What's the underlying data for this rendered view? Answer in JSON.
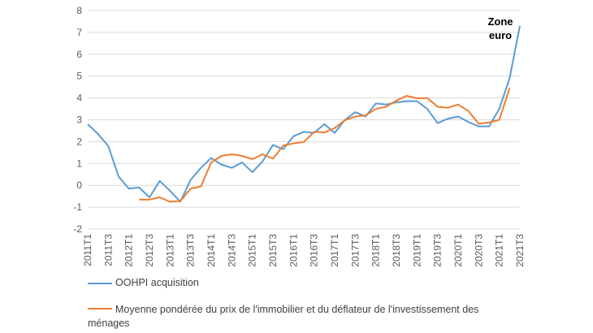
{
  "chart_data": {
    "type": "line",
    "title": "",
    "xlabel": "",
    "ylabel": "",
    "annotation": "Zone euro",
    "ylim": [
      -2,
      8
    ],
    "yticks": [
      -2,
      -1,
      0,
      1,
      2,
      3,
      4,
      5,
      6,
      7,
      8
    ],
    "grid": "horizontal",
    "legend": "bottom",
    "x": [
      "2011T1",
      "2011T2",
      "2011T3",
      "2011T4",
      "2012T1",
      "2012T2",
      "2012T3",
      "2012T4",
      "2013T1",
      "2013T2",
      "2013T3",
      "2013T4",
      "2014T1",
      "2014T2",
      "2014T3",
      "2014T4",
      "2015T1",
      "2015T2",
      "2015T3",
      "2015T4",
      "2016T1",
      "2016T2",
      "2016T3",
      "2016T4",
      "2017T1",
      "2017T2",
      "2017T3",
      "2017T4",
      "2018T1",
      "2018T2",
      "2018T3",
      "2018T4",
      "2019T1",
      "2019T2",
      "2019T3",
      "2019T4",
      "2020T1",
      "2020T2",
      "2020T3",
      "2020T4",
      "2021T1",
      "2021T2",
      "2021T3"
    ],
    "x_tick_labels": [
      "2011T1",
      "2011T3",
      "2012T1",
      "2012T3",
      "2013T1",
      "2013T3",
      "2014T1",
      "2014T3",
      "2015T1",
      "2015T3",
      "2016T1",
      "2016T3",
      "2017T1",
      "2017T3",
      "2018T1",
      "2018T3",
      "2019T1",
      "2019T3",
      "2020T1",
      "2020T3",
      "2021T1",
      "2021T3"
    ],
    "series": [
      {
        "name": "OOHPI acquisition",
        "color": "#5b9bd5",
        "values": [
          2.8,
          2.35,
          1.8,
          0.4,
          -0.15,
          -0.1,
          -0.55,
          0.2,
          -0.25,
          -0.75,
          0.25,
          0.8,
          1.25,
          0.95,
          0.8,
          1.05,
          0.6,
          1.1,
          1.85,
          1.65,
          2.25,
          2.45,
          2.4,
          2.8,
          2.4,
          3.0,
          3.35,
          3.15,
          3.75,
          3.7,
          3.8,
          3.85,
          3.85,
          3.5,
          2.85,
          3.05,
          3.15,
          2.9,
          2.7,
          2.7,
          3.5,
          4.9,
          7.3
        ]
      },
      {
        "name": "Moyenne pondérée du prix de l'immobilier et du déflateur de l'investissement des ménages",
        "color": "#ed7d31",
        "values": [
          null,
          null,
          null,
          null,
          null,
          -0.65,
          -0.65,
          -0.55,
          -0.75,
          -0.72,
          -0.15,
          -0.05,
          1.05,
          1.35,
          1.42,
          1.35,
          1.2,
          1.42,
          1.22,
          1.82,
          1.92,
          1.98,
          2.45,
          2.42,
          2.62,
          2.98,
          3.15,
          3.2,
          3.5,
          3.6,
          3.88,
          4.1,
          3.98,
          4.0,
          3.6,
          3.55,
          3.7,
          3.4,
          2.82,
          2.88,
          3.0,
          4.45,
          null
        ]
      }
    ]
  }
}
